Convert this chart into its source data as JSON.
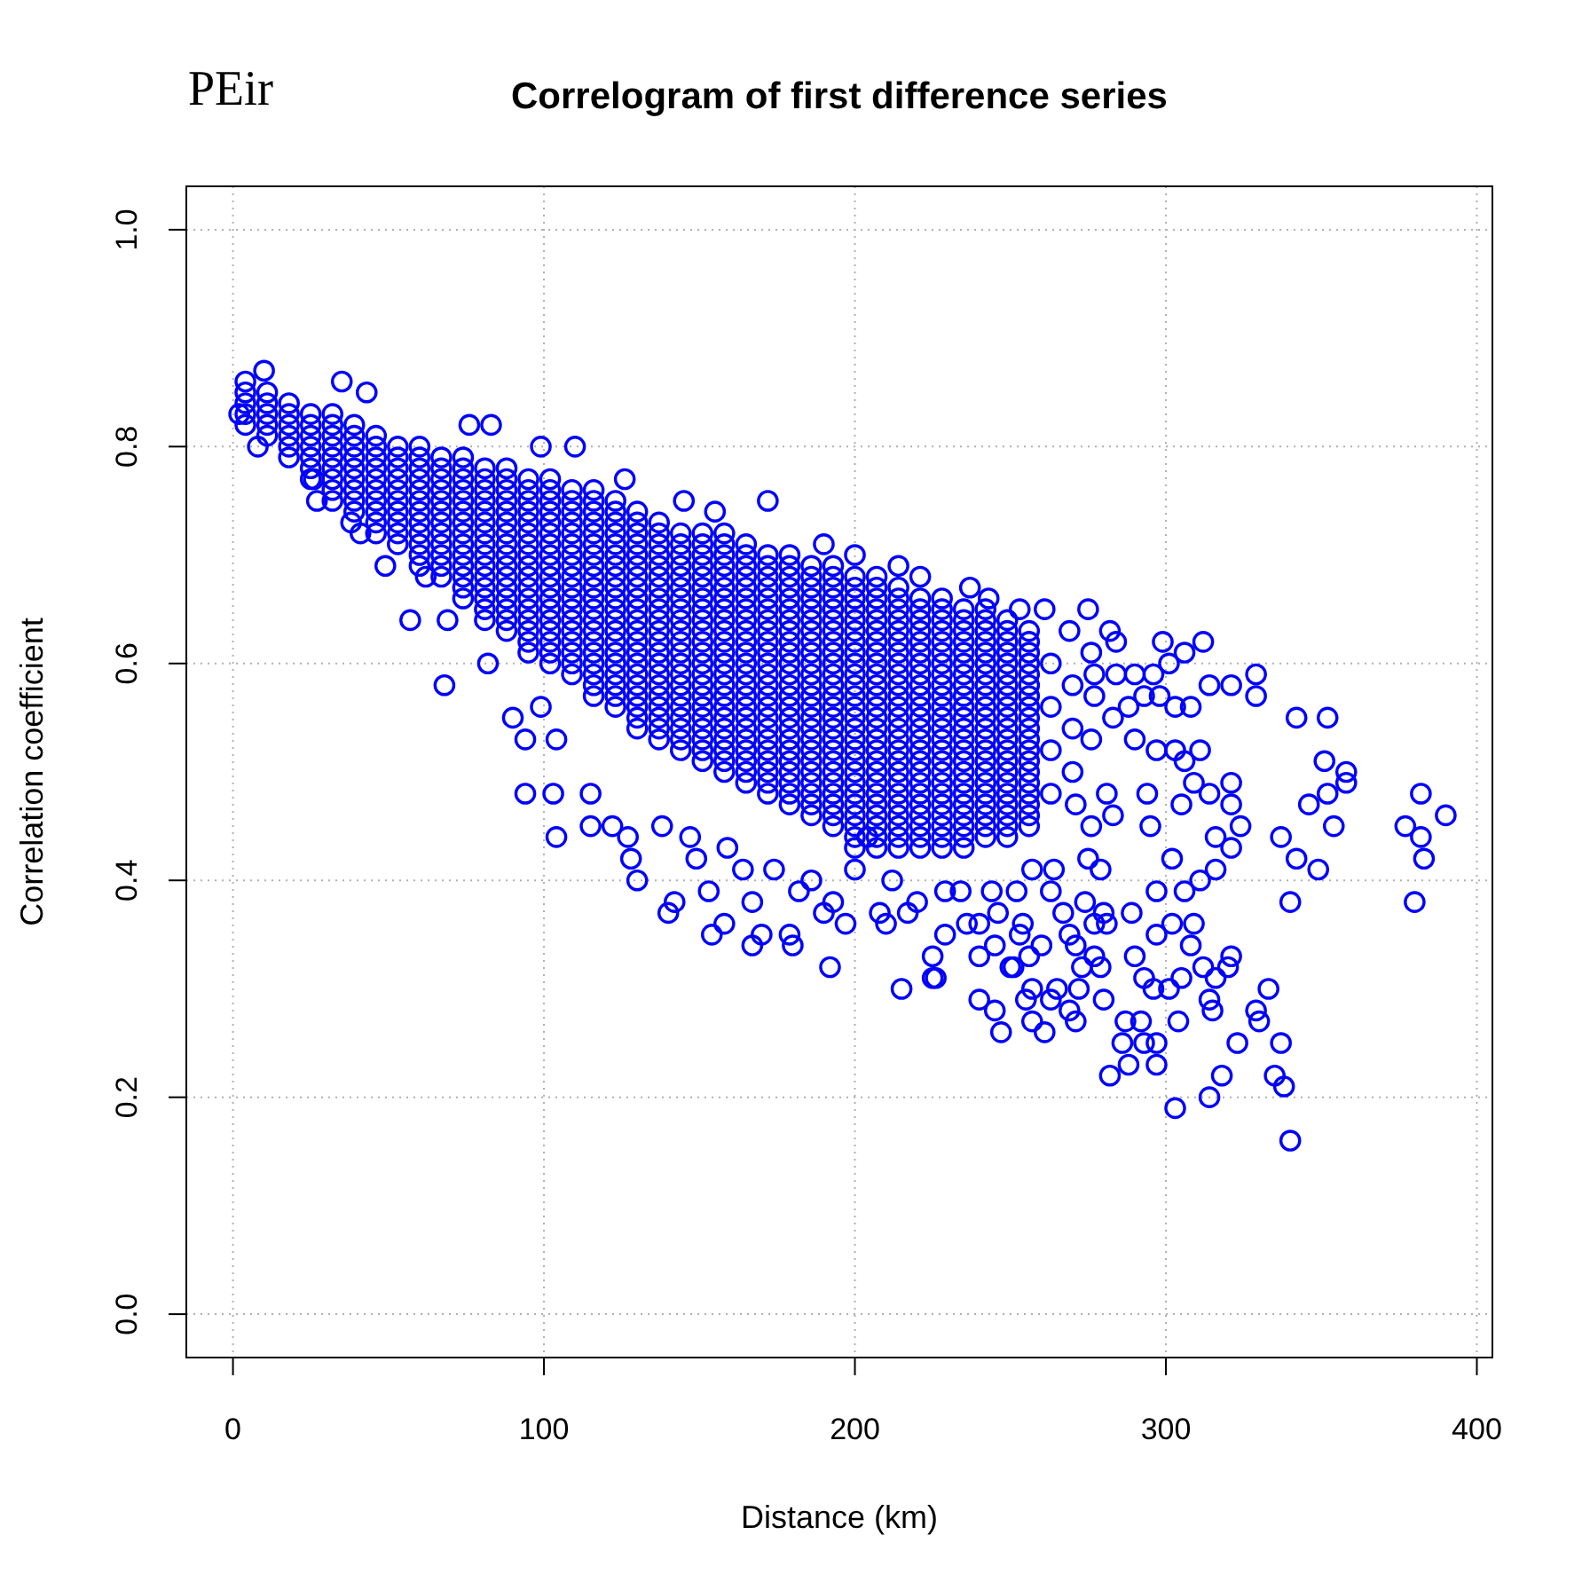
{
  "chart_data": {
    "type": "scatter",
    "title": "Correlogram of first difference series",
    "xlabel": "Distance (km)",
    "ylabel": "Correlation coefficient",
    "annotations": [
      "PEir"
    ],
    "x": [
      68,
      94,
      104,
      103,
      57,
      49,
      27,
      2,
      10,
      35,
      43,
      76,
      83,
      99,
      110,
      126,
      145,
      155,
      172,
      190,
      200,
      214,
      221,
      237,
      253,
      82,
      90,
      94,
      115,
      122,
      128,
      130,
      140,
      142,
      154,
      158,
      167,
      180,
      192,
      215,
      226,
      167,
      190,
      197,
      170,
      153,
      138,
      115,
      127,
      299,
      312,
      329,
      329,
      321,
      352,
      342,
      358,
      358,
      351,
      352,
      354,
      346,
      349,
      382,
      390,
      377,
      382,
      383,
      380,
      340,
      337,
      342,
      321,
      324,
      316,
      316,
      321,
      321,
      311,
      302,
      306,
      295,
      297,
      289,
      302,
      297,
      309,
      308,
      321,
      320,
      305,
      312,
      316,
      290,
      293,
      301,
      296,
      314,
      315,
      304,
      333,
      329,
      330,
      337,
      323,
      318,
      314,
      303,
      335,
      338,
      340,
      297,
      288,
      282,
      286,
      293,
      297,
      287,
      292,
      280,
      271,
      261,
      247,
      245,
      240,
      255,
      257,
      272,
      279,
      277,
      265,
      263,
      251,
      257,
      240,
      280,
      277,
      283,
      275,
      225,
      225,
      243,
      261,
      269,
      276,
      282,
      284,
      290,
      296,
      306,
      301,
      314,
      308,
      303,
      298,
      293,
      288,
      283,
      276,
      290,
      297,
      303,
      306,
      311,
      309,
      314,
      305,
      294,
      281,
      271,
      276,
      275,
      264,
      257,
      279,
      274,
      267,
      263,
      252,
      244,
      256,
      260,
      269,
      281,
      254,
      234,
      236,
      200,
      204,
      212,
      220,
      217,
      229,
      240,
      246,
      250,
      245,
      229,
      253,
      186,
      182,
      174,
      159,
      164,
      149,
      147,
      193,
      208,
      179,
      210,
      271,
      273,
      269,
      41,
      26,
      8,
      38,
      99,
      104,
      69,
      62,
      263,
      270,
      263,
      270,
      263,
      270,
      263,
      277,
      277,
      284,
      4,
      4,
      4,
      4,
      4,
      11,
      11,
      11,
      11,
      11,
      18,
      18,
      18,
      18,
      18,
      18,
      25,
      25,
      25,
      25,
      25,
      25,
      25,
      32,
      32,
      32,
      32,
      32,
      32,
      32,
      32,
      32,
      39,
      39,
      39,
      39,
      39,
      39,
      39,
      39,
      39,
      46,
      46,
      46,
      46,
      46,
      46,
      46,
      46,
      46,
      46,
      53,
      53,
      53,
      53,
      53,
      53,
      53,
      53,
      53,
      53,
      60,
      60,
      60,
      60,
      60,
      60,
      60,
      60,
      60,
      60,
      60,
      60,
      67,
      67,
      67,
      67,
      67,
      67,
      67,
      67,
      67,
      67,
      67,
      67,
      74,
      74,
      74,
      74,
      74,
      74,
      74,
      74,
      74,
      74,
      74,
      74,
      74,
      74,
      81,
      81,
      81,
      81,
      81,
      81,
      81,
      81,
      81,
      81,
      81,
      81,
      81,
      81,
      81,
      88,
      88,
      88,
      88,
      88,
      88,
      88,
      88,
      88,
      88,
      88,
      88,
      88,
      88,
      88,
      88,
      95,
      95,
      95,
      95,
      95,
      95,
      95,
      95,
      95,
      95,
      95,
      95,
      95,
      95,
      95,
      95,
      95,
      102,
      102,
      102,
      102,
      102,
      102,
      102,
      102,
      102,
      102,
      102,
      102,
      102,
      102,
      102,
      102,
      102,
      102,
      109,
      109,
      109,
      109,
      109,
      109,
      109,
      109,
      109,
      109,
      109,
      109,
      109,
      109,
      109,
      109,
      109,
      109,
      116,
      116,
      116,
      116,
      116,
      116,
      116,
      116,
      116,
      116,
      116,
      116,
      116,
      116,
      116,
      116,
      116,
      116,
      116,
      116,
      123,
      123,
      123,
      123,
      123,
      123,
      123,
      123,
      123,
      123,
      123,
      123,
      123,
      123,
      123,
      123,
      123,
      123,
      123,
      123,
      130,
      130,
      130,
      130,
      130,
      130,
      130,
      130,
      130,
      130,
      130,
      130,
      130,
      130,
      130,
      130,
      130,
      130,
      130,
      130,
      130,
      137,
      137,
      137,
      137,
      137,
      137,
      137,
      137,
      137,
      137,
      137,
      137,
      137,
      137,
      137,
      137,
      137,
      137,
      137,
      137,
      137,
      144,
      144,
      144,
      144,
      144,
      144,
      144,
      144,
      144,
      144,
      144,
      144,
      144,
      144,
      144,
      144,
      144,
      144,
      144,
      144,
      144,
      151,
      151,
      151,
      151,
      151,
      151,
      151,
      151,
      151,
      151,
      151,
      151,
      151,
      151,
      151,
      151,
      151,
      151,
      151,
      151,
      151,
      151,
      158,
      158,
      158,
      158,
      158,
      158,
      158,
      158,
      158,
      158,
      158,
      158,
      158,
      158,
      158,
      158,
      158,
      158,
      158,
      158,
      158,
      158,
      158,
      165,
      165,
      165,
      165,
      165,
      165,
      165,
      165,
      165,
      165,
      165,
      165,
      165,
      165,
      165,
      165,
      165,
      165,
      165,
      165,
      165,
      165,
      165,
      172,
      172,
      172,
      172,
      172,
      172,
      172,
      172,
      172,
      172,
      172,
      172,
      172,
      172,
      172,
      172,
      172,
      172,
      172,
      172,
      172,
      172,
      172,
      179,
      179,
      179,
      179,
      179,
      179,
      179,
      179,
      179,
      179,
      179,
      179,
      179,
      179,
      179,
      179,
      179,
      179,
      179,
      179,
      179,
      179,
      179,
      179,
      186,
      186,
      186,
      186,
      186,
      186,
      186,
      186,
      186,
      186,
      186,
      186,
      186,
      186,
      186,
      186,
      186,
      186,
      186,
      186,
      186,
      186,
      186,
      186,
      193,
      193,
      193,
      193,
      193,
      193,
      193,
      193,
      193,
      193,
      193,
      193,
      193,
      193,
      193,
      193,
      193,
      193,
      193,
      193,
      193,
      193,
      193,
      193,
      193,
      200,
      200,
      200,
      200,
      200,
      200,
      200,
      200,
      200,
      200,
      200,
      200,
      200,
      200,
      200,
      200,
      200,
      200,
      200,
      200,
      200,
      200,
      200,
      200,
      200,
      200,
      207,
      207,
      207,
      207,
      207,
      207,
      207,
      207,
      207,
      207,
      207,
      207,
      207,
      207,
      207,
      207,
      207,
      207,
      207,
      207,
      207,
      207,
      207,
      207,
      207,
      207,
      214,
      214,
      214,
      214,
      214,
      214,
      214,
      214,
      214,
      214,
      214,
      214,
      214,
      214,
      214,
      214,
      214,
      214,
      214,
      214,
      214,
      214,
      214,
      214,
      214,
      221,
      221,
      221,
      221,
      221,
      221,
      221,
      221,
      221,
      221,
      221,
      221,
      221,
      221,
      221,
      221,
      221,
      221,
      221,
      221,
      221,
      221,
      221,
      221,
      228,
      228,
      228,
      228,
      228,
      228,
      228,
      228,
      228,
      228,
      228,
      228,
      228,
      228,
      228,
      228,
      228,
      228,
      228,
      228,
      228,
      228,
      228,
      228,
      235,
      235,
      235,
      235,
      235,
      235,
      235,
      235,
      235,
      235,
      235,
      235,
      235,
      235,
      235,
      235,
      235,
      235,
      235,
      235,
      235,
      235,
      235,
      242,
      242,
      242,
      242,
      242,
      242,
      242,
      242,
      242,
      242,
      242,
      242,
      242,
      242,
      242,
      242,
      242,
      242,
      242,
      242,
      242,
      242,
      249,
      249,
      249,
      249,
      249,
      249,
      249,
      249,
      249,
      249,
      249,
      249,
      249,
      249,
      249,
      249,
      249,
      249,
      249,
      249,
      249,
      256,
      256,
      256,
      256,
      256,
      256,
      256,
      256,
      256,
      256,
      256,
      256,
      256,
      256,
      256,
      256,
      256,
      256,
      256
    ],
    "values": [
      0.58,
      0.48,
      0.44,
      0.48,
      0.64,
      0.69,
      0.75,
      0.83,
      0.87,
      0.86,
      0.85,
      0.82,
      0.82,
      0.8,
      0.8,
      0.77,
      0.75,
      0.74,
      0.75,
      0.71,
      0.7,
      0.69,
      0.68,
      0.67,
      0.65,
      0.6,
      0.55,
      0.53,
      0.45,
      0.45,
      0.42,
      0.4,
      0.37,
      0.38,
      0.35,
      0.36,
      0.34,
      0.34,
      0.32,
      0.3,
      0.31,
      0.38,
      0.37,
      0.36,
      0.35,
      0.39,
      0.45,
      0.48,
      0.44,
      0.62,
      0.62,
      0.59,
      0.57,
      0.58,
      0.55,
      0.55,
      0.5,
      0.49,
      0.51,
      0.48,
      0.45,
      0.47,
      0.41,
      0.48,
      0.46,
      0.45,
      0.44,
      0.42,
      0.38,
      0.38,
      0.44,
      0.42,
      0.43,
      0.45,
      0.44,
      0.41,
      0.49,
      0.47,
      0.4,
      0.42,
      0.39,
      0.45,
      0.39,
      0.37,
      0.36,
      0.35,
      0.36,
      0.34,
      0.33,
      0.32,
      0.31,
      0.32,
      0.31,
      0.33,
      0.31,
      0.3,
      0.3,
      0.29,
      0.28,
      0.27,
      0.3,
      0.28,
      0.27,
      0.25,
      0.25,
      0.22,
      0.2,
      0.19,
      0.22,
      0.21,
      0.16,
      0.23,
      0.23,
      0.22,
      0.25,
      0.25,
      0.25,
      0.27,
      0.27,
      0.29,
      0.27,
      0.26,
      0.26,
      0.28,
      0.29,
      0.29,
      0.27,
      0.3,
      0.32,
      0.33,
      0.3,
      0.29,
      0.32,
      0.3,
      0.33,
      0.37,
      0.36,
      0.46,
      0.65,
      0.33,
      0.31,
      0.66,
      0.65,
      0.63,
      0.61,
      0.63,
      0.62,
      0.59,
      0.59,
      0.61,
      0.6,
      0.58,
      0.56,
      0.56,
      0.57,
      0.57,
      0.56,
      0.55,
      0.53,
      0.53,
      0.52,
      0.52,
      0.51,
      0.52,
      0.49,
      0.48,
      0.47,
      0.48,
      0.48,
      0.47,
      0.45,
      0.42,
      0.41,
      0.41,
      0.41,
      0.38,
      0.37,
      0.39,
      0.39,
      0.39,
      0.33,
      0.34,
      0.35,
      0.36,
      0.36,
      0.39,
      0.36,
      0.41,
      0.44,
      0.4,
      0.38,
      0.37,
      0.39,
      0.36,
      0.37,
      0.32,
      0.34,
      0.35,
      0.35,
      0.4,
      0.39,
      0.41,
      0.43,
      0.41,
      0.42,
      0.44,
      0.38,
      0.37,
      0.35,
      0.36,
      0.34,
      0.32,
      0.28,
      0.72,
      0.77,
      0.8,
      0.73,
      0.56,
      0.53,
      0.64,
      0.68,
      0.6,
      0.58,
      0.56,
      0.54,
      0.52,
      0.5,
      0.48,
      0.57,
      0.59,
      0.59,
      0.82,
      0.83,
      0.84,
      0.85,
      0.86,
      0.81,
      0.82,
      0.83,
      0.84,
      0.85,
      0.79,
      0.8,
      0.81,
      0.82,
      0.83,
      0.84,
      0.77,
      0.78,
      0.79,
      0.8,
      0.81,
      0.82,
      0.83,
      0.75,
      0.76,
      0.77,
      0.78,
      0.79,
      0.8,
      0.81,
      0.82,
      0.83,
      0.74,
      0.75,
      0.76,
      0.77,
      0.78,
      0.79,
      0.8,
      0.81,
      0.82,
      0.72,
      0.73,
      0.74,
      0.75,
      0.76,
      0.77,
      0.78,
      0.79,
      0.8,
      0.81,
      0.71,
      0.72,
      0.73,
      0.74,
      0.75,
      0.76,
      0.77,
      0.78,
      0.79,
      0.8,
      0.69,
      0.7,
      0.71,
      0.72,
      0.73,
      0.74,
      0.75,
      0.76,
      0.77,
      0.78,
      0.79,
      0.8,
      0.68,
      0.69,
      0.7,
      0.71,
      0.72,
      0.73,
      0.74,
      0.75,
      0.76,
      0.77,
      0.78,
      0.79,
      0.66,
      0.67,
      0.68,
      0.69,
      0.7,
      0.71,
      0.72,
      0.73,
      0.74,
      0.75,
      0.76,
      0.77,
      0.78,
      0.79,
      0.64,
      0.65,
      0.66,
      0.67,
      0.68,
      0.69,
      0.7,
      0.71,
      0.72,
      0.73,
      0.74,
      0.75,
      0.76,
      0.77,
      0.78,
      0.63,
      0.64,
      0.65,
      0.66,
      0.67,
      0.68,
      0.69,
      0.7,
      0.71,
      0.72,
      0.73,
      0.74,
      0.75,
      0.76,
      0.77,
      0.78,
      0.61,
      0.62,
      0.63,
      0.64,
      0.65,
      0.66,
      0.67,
      0.68,
      0.69,
      0.7,
      0.71,
      0.72,
      0.73,
      0.74,
      0.75,
      0.76,
      0.77,
      0.6,
      0.61,
      0.62,
      0.63,
      0.64,
      0.65,
      0.66,
      0.67,
      0.68,
      0.69,
      0.7,
      0.71,
      0.72,
      0.73,
      0.74,
      0.75,
      0.76,
      0.77,
      0.59,
      0.6,
      0.61,
      0.62,
      0.63,
      0.64,
      0.65,
      0.66,
      0.67,
      0.68,
      0.69,
      0.7,
      0.71,
      0.72,
      0.73,
      0.74,
      0.75,
      0.76,
      0.57,
      0.58,
      0.59,
      0.6,
      0.61,
      0.62,
      0.63,
      0.64,
      0.65,
      0.66,
      0.67,
      0.68,
      0.69,
      0.7,
      0.71,
      0.72,
      0.73,
      0.74,
      0.75,
      0.76,
      0.56,
      0.57,
      0.58,
      0.59,
      0.6,
      0.61,
      0.62,
      0.63,
      0.64,
      0.65,
      0.66,
      0.67,
      0.68,
      0.69,
      0.7,
      0.71,
      0.72,
      0.73,
      0.74,
      0.75,
      0.54,
      0.55,
      0.56,
      0.57,
      0.58,
      0.59,
      0.6,
      0.61,
      0.62,
      0.63,
      0.64,
      0.65,
      0.66,
      0.67,
      0.68,
      0.69,
      0.7,
      0.71,
      0.72,
      0.73,
      0.74,
      0.53,
      0.54,
      0.55,
      0.56,
      0.57,
      0.58,
      0.59,
      0.6,
      0.61,
      0.62,
      0.63,
      0.64,
      0.65,
      0.66,
      0.67,
      0.68,
      0.69,
      0.7,
      0.71,
      0.72,
      0.73,
      0.52,
      0.53,
      0.54,
      0.55,
      0.56,
      0.57,
      0.58,
      0.59,
      0.6,
      0.61,
      0.62,
      0.63,
      0.64,
      0.65,
      0.66,
      0.67,
      0.68,
      0.69,
      0.7,
      0.71,
      0.72,
      0.51,
      0.52,
      0.53,
      0.54,
      0.55,
      0.56,
      0.57,
      0.58,
      0.59,
      0.6,
      0.61,
      0.62,
      0.63,
      0.64,
      0.65,
      0.66,
      0.67,
      0.68,
      0.69,
      0.7,
      0.71,
      0.72,
      0.5,
      0.51,
      0.52,
      0.53,
      0.54,
      0.55,
      0.56,
      0.57,
      0.58,
      0.59,
      0.6,
      0.61,
      0.62,
      0.63,
      0.64,
      0.65,
      0.66,
      0.67,
      0.68,
      0.69,
      0.7,
      0.71,
      0.72,
      0.49,
      0.5,
      0.51,
      0.52,
      0.53,
      0.54,
      0.55,
      0.56,
      0.57,
      0.58,
      0.59,
      0.6,
      0.61,
      0.62,
      0.63,
      0.64,
      0.65,
      0.66,
      0.67,
      0.68,
      0.69,
      0.7,
      0.71,
      0.48,
      0.49,
      0.5,
      0.51,
      0.52,
      0.53,
      0.54,
      0.55,
      0.56,
      0.57,
      0.58,
      0.59,
      0.6,
      0.61,
      0.62,
      0.63,
      0.64,
      0.65,
      0.66,
      0.67,
      0.68,
      0.69,
      0.7,
      0.47,
      0.48,
      0.49,
      0.5,
      0.51,
      0.52,
      0.53,
      0.54,
      0.55,
      0.56,
      0.57,
      0.58,
      0.59,
      0.6,
      0.61,
      0.62,
      0.63,
      0.64,
      0.65,
      0.66,
      0.67,
      0.68,
      0.69,
      0.7,
      0.46,
      0.47,
      0.48,
      0.49,
      0.5,
      0.51,
      0.52,
      0.53,
      0.54,
      0.55,
      0.56,
      0.57,
      0.58,
      0.59,
      0.6,
      0.61,
      0.62,
      0.63,
      0.64,
      0.65,
      0.66,
      0.67,
      0.68,
      0.69,
      0.45,
      0.46,
      0.47,
      0.48,
      0.49,
      0.5,
      0.51,
      0.52,
      0.53,
      0.54,
      0.55,
      0.56,
      0.57,
      0.58,
      0.59,
      0.6,
      0.61,
      0.62,
      0.63,
      0.64,
      0.65,
      0.66,
      0.67,
      0.68,
      0.69,
      0.43,
      0.44,
      0.45,
      0.46,
      0.47,
      0.48,
      0.49,
      0.5,
      0.51,
      0.52,
      0.53,
      0.54,
      0.55,
      0.56,
      0.57,
      0.58,
      0.59,
      0.6,
      0.61,
      0.62,
      0.63,
      0.64,
      0.65,
      0.66,
      0.67,
      0.68,
      0.43,
      0.44,
      0.45,
      0.46,
      0.47,
      0.48,
      0.49,
      0.5,
      0.51,
      0.52,
      0.53,
      0.54,
      0.55,
      0.56,
      0.57,
      0.58,
      0.59,
      0.6,
      0.61,
      0.62,
      0.63,
      0.64,
      0.65,
      0.66,
      0.67,
      0.68,
      0.43,
      0.44,
      0.45,
      0.46,
      0.47,
      0.48,
      0.49,
      0.5,
      0.51,
      0.52,
      0.53,
      0.54,
      0.55,
      0.56,
      0.57,
      0.58,
      0.59,
      0.6,
      0.61,
      0.62,
      0.63,
      0.64,
      0.65,
      0.66,
      0.67,
      0.43,
      0.44,
      0.45,
      0.46,
      0.47,
      0.48,
      0.49,
      0.5,
      0.51,
      0.52,
      0.53,
      0.54,
      0.55,
      0.56,
      0.57,
      0.58,
      0.59,
      0.6,
      0.61,
      0.62,
      0.63,
      0.64,
      0.65,
      0.66,
      0.43,
      0.44,
      0.45,
      0.46,
      0.47,
      0.48,
      0.49,
      0.5,
      0.51,
      0.52,
      0.53,
      0.54,
      0.55,
      0.56,
      0.57,
      0.58,
      0.59,
      0.6,
      0.61,
      0.62,
      0.63,
      0.64,
      0.65,
      0.66,
      0.43,
      0.44,
      0.45,
      0.46,
      0.47,
      0.48,
      0.49,
      0.5,
      0.51,
      0.52,
      0.53,
      0.54,
      0.55,
      0.56,
      0.57,
      0.58,
      0.59,
      0.6,
      0.61,
      0.62,
      0.63,
      0.64,
      0.65,
      0.44,
      0.45,
      0.46,
      0.47,
      0.48,
      0.49,
      0.5,
      0.51,
      0.52,
      0.53,
      0.54,
      0.55,
      0.56,
      0.57,
      0.58,
      0.59,
      0.6,
      0.61,
      0.62,
      0.63,
      0.64,
      0.65,
      0.44,
      0.45,
      0.46,
      0.47,
      0.48,
      0.49,
      0.5,
      0.51,
      0.52,
      0.53,
      0.54,
      0.55,
      0.56,
      0.57,
      0.58,
      0.59,
      0.6,
      0.61,
      0.62,
      0.63,
      0.64,
      0.45,
      0.46,
      0.47,
      0.48,
      0.49,
      0.5,
      0.51,
      0.52,
      0.53,
      0.54,
      0.55,
      0.56,
      0.57,
      0.58,
      0.59,
      0.6,
      0.61,
      0.62,
      0.63
    ],
    "color": "#0000ff",
    "marker": "circle",
    "xlim": [
      -15,
      405
    ],
    "ylim": [
      -0.04,
      1.04
    ],
    "xticks": [
      0,
      100,
      200,
      300,
      400
    ],
    "yticks": [
      {
        "value": 0,
        "label": "0.0"
      },
      0.2,
      0.4,
      0.6,
      0.8,
      {
        "value": 1,
        "label": "1.0"
      }
    ],
    "grid": true
  }
}
